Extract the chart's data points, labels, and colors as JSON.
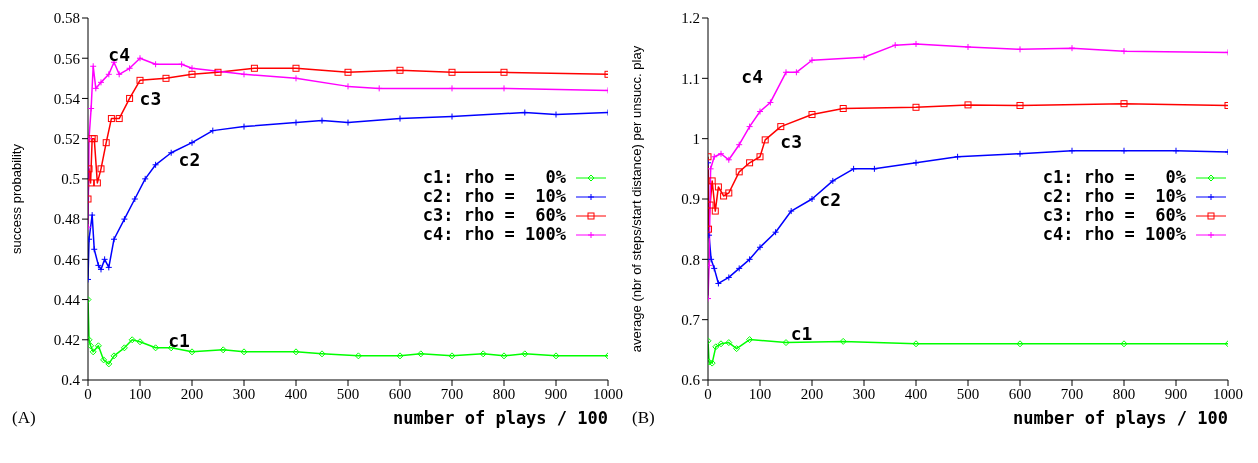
{
  "chart_data": [
    {
      "type": "line",
      "xlabel": "number of plays / 100",
      "ylabel": "success probability",
      "xlim": [
        0,
        1000
      ],
      "xticks": [
        0,
        100,
        200,
        300,
        400,
        500,
        600,
        700,
        800,
        900,
        1000
      ],
      "ylim": [
        0.4,
        0.58
      ],
      "yticks": [
        0.4,
        0.42,
        0.44,
        0.46,
        0.48,
        0.5,
        0.52,
        0.54,
        0.56,
        0.58
      ],
      "legend": "right",
      "annotations": [
        "(A)",
        "c4",
        "c3",
        "c2",
        "c1"
      ],
      "series": [
        {
          "name": "c1: rho =   0%",
          "color": "#00ff00",
          "marker": "diamond",
          "x": [
            0,
            2,
            5,
            10,
            20,
            30,
            40,
            50,
            70,
            85,
            100,
            130,
            160,
            200,
            260,
            300,
            400,
            450,
            520,
            600,
            640,
            700,
            760,
            800,
            840,
            900,
            1000
          ],
          "values": [
            0.44,
            0.42,
            0.417,
            0.414,
            0.417,
            0.41,
            0.408,
            0.412,
            0.416,
            0.42,
            0.419,
            0.416,
            0.416,
            0.414,
            0.415,
            0.414,
            0.414,
            0.413,
            0.412,
            0.412,
            0.413,
            0.412,
            0.413,
            0.412,
            0.413,
            0.412,
            0.412
          ]
        },
        {
          "name": "c2: rho =  10%",
          "color": "#0000ff",
          "marker": "cross",
          "x": [
            0,
            2,
            8,
            12,
            20,
            25,
            32,
            40,
            50,
            70,
            90,
            110,
            130,
            160,
            200,
            240,
            300,
            400,
            450,
            500,
            600,
            700,
            840,
            900,
            1000
          ],
          "values": [
            0.45,
            0.47,
            0.482,
            0.465,
            0.457,
            0.455,
            0.46,
            0.456,
            0.47,
            0.48,
            0.49,
            0.5,
            0.507,
            0.513,
            0.518,
            0.524,
            0.526,
            0.528,
            0.529,
            0.528,
            0.53,
            0.531,
            0.533,
            0.532,
            0.533
          ]
        },
        {
          "name": "c3: rho =  60%",
          "color": "#ff0000",
          "marker": "square",
          "x": [
            0,
            2,
            5,
            8,
            12,
            18,
            25,
            35,
            45,
            60,
            80,
            100,
            150,
            200,
            250,
            320,
            400,
            500,
            600,
            700,
            800,
            1000
          ],
          "values": [
            0.49,
            0.505,
            0.498,
            0.52,
            0.52,
            0.498,
            0.505,
            0.518,
            0.53,
            0.53,
            0.54,
            0.549,
            0.55,
            0.552,
            0.553,
            0.555,
            0.555,
            0.553,
            0.554,
            0.553,
            0.553,
            0.552
          ]
        },
        {
          "name": "c4: rho = 100%",
          "color": "#ff00ff",
          "marker": "cross",
          "x": [
            0,
            2,
            6,
            10,
            15,
            25,
            40,
            50,
            60,
            80,
            100,
            130,
            180,
            200,
            300,
            400,
            500,
            560,
            700,
            800,
            1000
          ],
          "values": [
            0.476,
            0.52,
            0.535,
            0.556,
            0.545,
            0.548,
            0.552,
            0.558,
            0.552,
            0.555,
            0.56,
            0.557,
            0.557,
            0.555,
            0.552,
            0.55,
            0.546,
            0.545,
            0.545,
            0.545,
            0.544
          ]
        }
      ]
    },
    {
      "type": "line",
      "xlabel": "number of plays / 100",
      "ylabel": "average (nbr of steps/start distance) per unsucc. play",
      "xlim": [
        0,
        1000
      ],
      "xticks": [
        0,
        100,
        200,
        300,
        400,
        500,
        600,
        700,
        800,
        900,
        1000
      ],
      "ylim": [
        0.6,
        1.2
      ],
      "yticks": [
        0.6,
        0.7,
        0.8,
        0.9,
        1,
        1.1,
        1.2
      ],
      "legend": "right",
      "annotations": [
        "(B)",
        "c4",
        "c3",
        "c2",
        "c1"
      ],
      "series": [
        {
          "name": "c1: rho =   0%",
          "color": "#00ff00",
          "marker": "diamond",
          "x": [
            0,
            2,
            8,
            15,
            25,
            40,
            55,
            80,
            150,
            260,
            400,
            600,
            800,
            1000
          ],
          "values": [
            0.665,
            0.63,
            0.628,
            0.655,
            0.66,
            0.662,
            0.652,
            0.667,
            0.662,
            0.664,
            0.66,
            0.66,
            0.66,
            0.66
          ]
        },
        {
          "name": "c2: rho =  10%",
          "color": "#0000ff",
          "marker": "cross",
          "x": [
            0,
            2,
            6,
            12,
            20,
            40,
            60,
            80,
            100,
            130,
            160,
            200,
            240,
            280,
            320,
            400,
            480,
            600,
            700,
            800,
            900,
            1000
          ],
          "values": [
            0.96,
            0.84,
            0.8,
            0.785,
            0.76,
            0.77,
            0.785,
            0.8,
            0.82,
            0.845,
            0.88,
            0.9,
            0.93,
            0.95,
            0.95,
            0.96,
            0.97,
            0.975,
            0.98,
            0.98,
            0.98,
            0.978
          ]
        },
        {
          "name": "c3: rho =  60%",
          "color": "#ff0000",
          "marker": "square",
          "x": [
            0,
            1,
            4,
            8,
            14,
            20,
            30,
            40,
            60,
            80,
            100,
            110,
            140,
            200,
            260,
            400,
            500,
            600,
            800,
            1000
          ],
          "values": [
            0.97,
            0.85,
            0.89,
            0.93,
            0.88,
            0.92,
            0.905,
            0.91,
            0.945,
            0.96,
            0.97,
            0.998,
            1.02,
            1.04,
            1.05,
            1.052,
            1.056,
            1.055,
            1.058,
            1.055
          ]
        },
        {
          "name": "c4: rho = 100%",
          "color": "#ff00ff",
          "marker": "cross",
          "x": [
            0,
            2,
            5,
            12,
            25,
            40,
            60,
            80,
            100,
            120,
            150,
            170,
            200,
            300,
            360,
            400,
            500,
            600,
            700,
            800,
            1000
          ],
          "values": [
            0.735,
            0.79,
            0.95,
            0.97,
            0.975,
            0.965,
            0.99,
            1.02,
            1.045,
            1.06,
            1.11,
            1.11,
            1.13,
            1.135,
            1.155,
            1.157,
            1.152,
            1.148,
            1.15,
            1.145,
            1.143
          ]
        }
      ]
    }
  ]
}
